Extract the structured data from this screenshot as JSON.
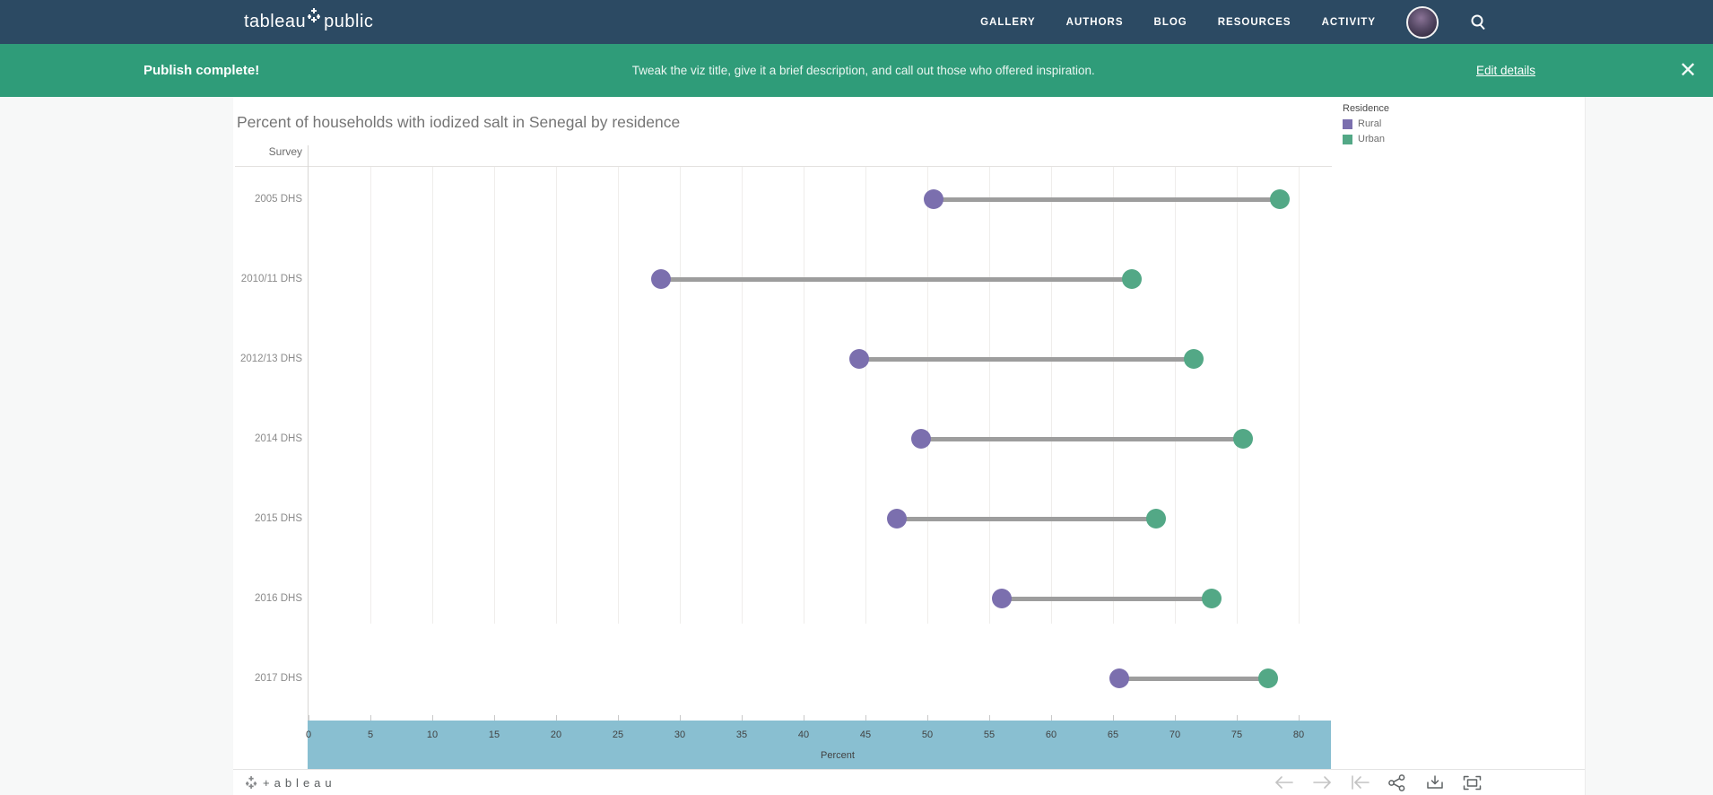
{
  "nav": {
    "brand_left": "tableau",
    "brand_right": "public",
    "items": [
      {
        "label": "GALLERY"
      },
      {
        "label": "AUTHORS"
      },
      {
        "label": "BLOG"
      },
      {
        "label": "RESOURCES"
      },
      {
        "label": "ACTIVITY"
      }
    ],
    "icons": [
      "user-avatar",
      "search-icon"
    ],
    "bg_color": "#2c4a63"
  },
  "banner": {
    "title": "Publish complete!",
    "message": "Tweak the viz title, give it a brief description, and call out those who offered inspiration.",
    "action": "Edit details",
    "close_icon": "✕",
    "bg_color": "#2f9c79"
  },
  "chart_data": {
    "type": "dumbbell",
    "title": "Percent of households with iodized salt in Senegal by residence",
    "ylabel": "Survey",
    "xlabel": "Percent",
    "legend_title": "Residence",
    "legend_position": "top-right",
    "grid": true,
    "xlim": [
      0,
      80
    ],
    "xticks": [
      0,
      5,
      10,
      15,
      20,
      25,
      30,
      35,
      40,
      45,
      50,
      55,
      60,
      65,
      70,
      75,
      80
    ],
    "categories": [
      "2005 DHS",
      "2010/11 DHS",
      "2012/13 DHS",
      "2014 DHS",
      "2015 DHS",
      "2016 DHS",
      "2017 DHS"
    ],
    "series": [
      {
        "name": "Rural",
        "color": "#7b6fae",
        "values": [
          50.5,
          28.5,
          44.5,
          49.5,
          47.5,
          56,
          65.5
        ]
      },
      {
        "name": "Urban",
        "color": "#53a886",
        "values": [
          78.5,
          66.5,
          71.5,
          75.5,
          68.5,
          73,
          77.5
        ]
      }
    ],
    "connector_color": "#9d9d9d",
    "axis_band_color": "#89bfd1"
  },
  "footer": {
    "logo_text": "+ableau",
    "icons": [
      "undo-arrow-icon",
      "redo-arrow-icon",
      "reset-icon",
      "share-icon",
      "download-icon",
      "fullscreen-icon"
    ]
  }
}
